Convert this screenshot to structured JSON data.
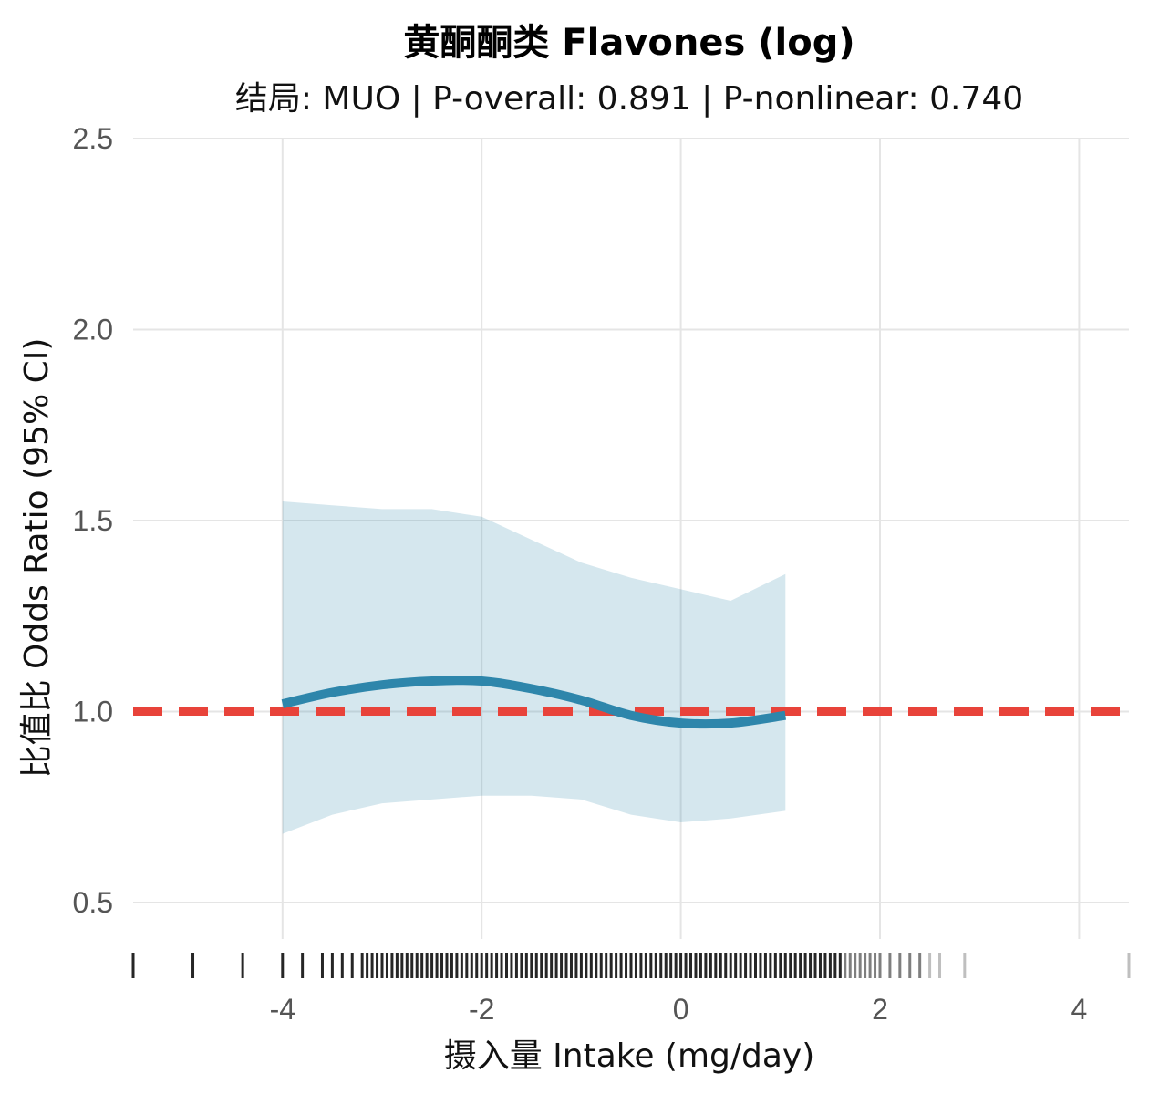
{
  "chart_data": {
    "type": "line",
    "title": "黄酮酮类 Flavones (log)",
    "subtitle": "结局: MUO | P-overall: 0.891 | P-nonlinear: 0.740",
    "xlabel": "摄入量 Intake (mg/day)",
    "ylabel": "比值比 Odds Ratio (95% CI)",
    "xlim": [
      -5.5,
      4.5
    ],
    "ylim": [
      0.35,
      2.5
    ],
    "x_ticks": [
      -4,
      -2,
      0,
      2,
      4
    ],
    "x_tick_labels": [
      "-4",
      "-2",
      "0",
      "2",
      "4"
    ],
    "y_ticks": [
      0.5,
      1.0,
      1.5,
      2.0,
      2.5
    ],
    "y_tick_labels": [
      "0.5",
      "1.0",
      "1.5",
      "2.0",
      "2.5"
    ],
    "grid": true,
    "reference_line": {
      "y": 1.0,
      "style": "dashed",
      "color": "#e8433a"
    },
    "series": [
      {
        "kind": "line",
        "color": "#2e86ab",
        "x": [
          -4.0,
          -3.5,
          -3.0,
          -2.5,
          -2.0,
          -1.5,
          -1.0,
          -0.5,
          0.0,
          0.5,
          1.05
        ],
        "y": [
          1.02,
          1.05,
          1.07,
          1.08,
          1.08,
          1.06,
          1.03,
          0.99,
          0.97,
          0.97,
          0.99
        ]
      },
      {
        "kind": "band",
        "color": "#2e86ab",
        "opacity": 0.2,
        "x": [
          -4.0,
          -3.5,
          -3.0,
          -2.5,
          -2.0,
          -1.5,
          -1.0,
          -0.5,
          0.0,
          0.5,
          1.05
        ],
        "lower": [
          0.68,
          0.73,
          0.76,
          0.77,
          0.78,
          0.78,
          0.77,
          0.73,
          0.71,
          0.72,
          0.74
        ],
        "upper": [
          1.55,
          1.54,
          1.53,
          1.53,
          1.51,
          1.45,
          1.39,
          1.35,
          1.32,
          1.29,
          1.36
        ]
      }
    ],
    "rug_x": [
      -5.5,
      -4.9,
      -4.4,
      -4.0,
      -3.8,
      -3.6,
      -3.5,
      -3.4,
      -3.3,
      -3.2,
      -3.15,
      -3.1,
      -3.05,
      -3.0,
      -2.95,
      -2.9,
      -2.85,
      -2.8,
      -2.75,
      -2.7,
      -2.65,
      -2.6,
      -2.55,
      -2.5,
      -2.45,
      -2.4,
      -2.35,
      -2.3,
      -2.25,
      -2.2,
      -2.15,
      -2.1,
      -2.05,
      -2.0,
      -1.95,
      -1.9,
      -1.85,
      -1.8,
      -1.75,
      -1.7,
      -1.65,
      -1.6,
      -1.55,
      -1.5,
      -1.45,
      -1.4,
      -1.35,
      -1.3,
      -1.25,
      -1.2,
      -1.15,
      -1.1,
      -1.05,
      -1.0,
      -0.95,
      -0.9,
      -0.85,
      -0.8,
      -0.75,
      -0.7,
      -0.65,
      -0.6,
      -0.55,
      -0.5,
      -0.45,
      -0.4,
      -0.35,
      -0.3,
      -0.25,
      -0.2,
      -0.15,
      -0.1,
      -0.05,
      0.0,
      0.05,
      0.1,
      0.15,
      0.2,
      0.25,
      0.3,
      0.35,
      0.4,
      0.45,
      0.5,
      0.55,
      0.6,
      0.65,
      0.7,
      0.75,
      0.8,
      0.85,
      0.9,
      0.95,
      1.0,
      1.05,
      1.1,
      1.15,
      1.2,
      1.25,
      1.3,
      1.35,
      1.4,
      1.45,
      1.5,
      1.55,
      1.6,
      1.65,
      1.7,
      1.75,
      1.8,
      1.85,
      1.9,
      1.95,
      2.0,
      2.1,
      2.2,
      2.3,
      2.4,
      2.5,
      2.6,
      2.85,
      4.5
    ]
  }
}
